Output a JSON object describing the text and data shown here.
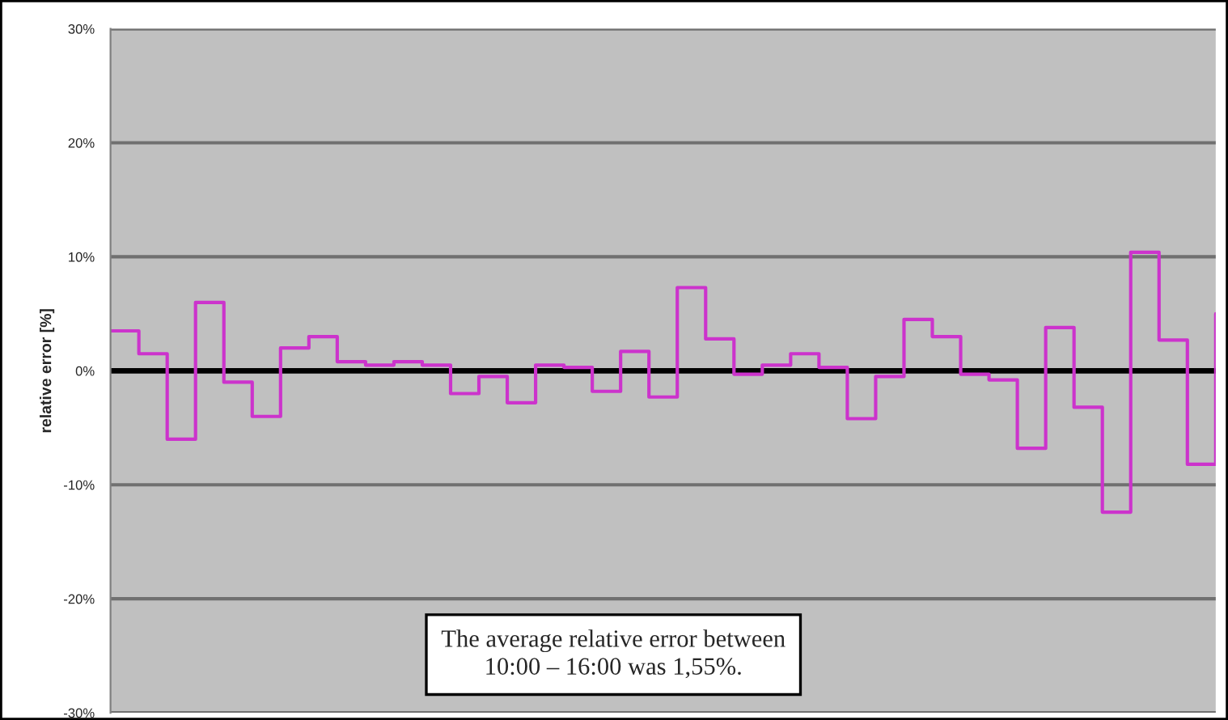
{
  "chart_data": {
    "type": "step",
    "ylabel": "relative error [%]",
    "categories": [
      null,
      null,
      null,
      null,
      null,
      null,
      null,
      null,
      null,
      null,
      null,
      null,
      null,
      null,
      null,
      null,
      null,
      null,
      null,
      null,
      null,
      null,
      null,
      null,
      null,
      null,
      null,
      null,
      null,
      null,
      null,
      null,
      null,
      null,
      null,
      null,
      null,
      null,
      null,
      null
    ],
    "series": [
      {
        "color": "#cc33cc",
        "values": [
          3.5,
          1.5,
          -6,
          6,
          -1,
          -4,
          2,
          3,
          0.8,
          0.5,
          0.8,
          0.5,
          -2,
          -0.5,
          -2.8,
          0.5,
          0.3,
          -1.8,
          1.7,
          -2.3,
          7.3,
          2.8,
          -0.3,
          0.5,
          1.5,
          0.3,
          -4.2,
          -0.5,
          4.5,
          3,
          -0.3,
          -0.8,
          -6.8,
          3.8,
          -3.2,
          -12.4,
          10.4,
          2.7,
          -8.2,
          5
        ]
      }
    ],
    "ylim": [
      -30,
      30
    ],
    "yticks": [
      {
        "value": -30,
        "label": "-30%"
      },
      {
        "value": -20,
        "label": "-20%"
      },
      {
        "value": -10,
        "label": "-10%"
      },
      {
        "value": 0,
        "label": "0%"
      },
      {
        "value": 10,
        "label": "10%"
      },
      {
        "value": 20,
        "label": "20%"
      },
      {
        "value": 30,
        "label": "30%"
      }
    ],
    "grid": "y",
    "ref_lines": [
      {
        "axis": "y",
        "value": 0,
        "color": "#000000"
      }
    ],
    "annotations": [
      "The average relative error between\n10:00 – 16:00 was 1,55%."
    ]
  }
}
